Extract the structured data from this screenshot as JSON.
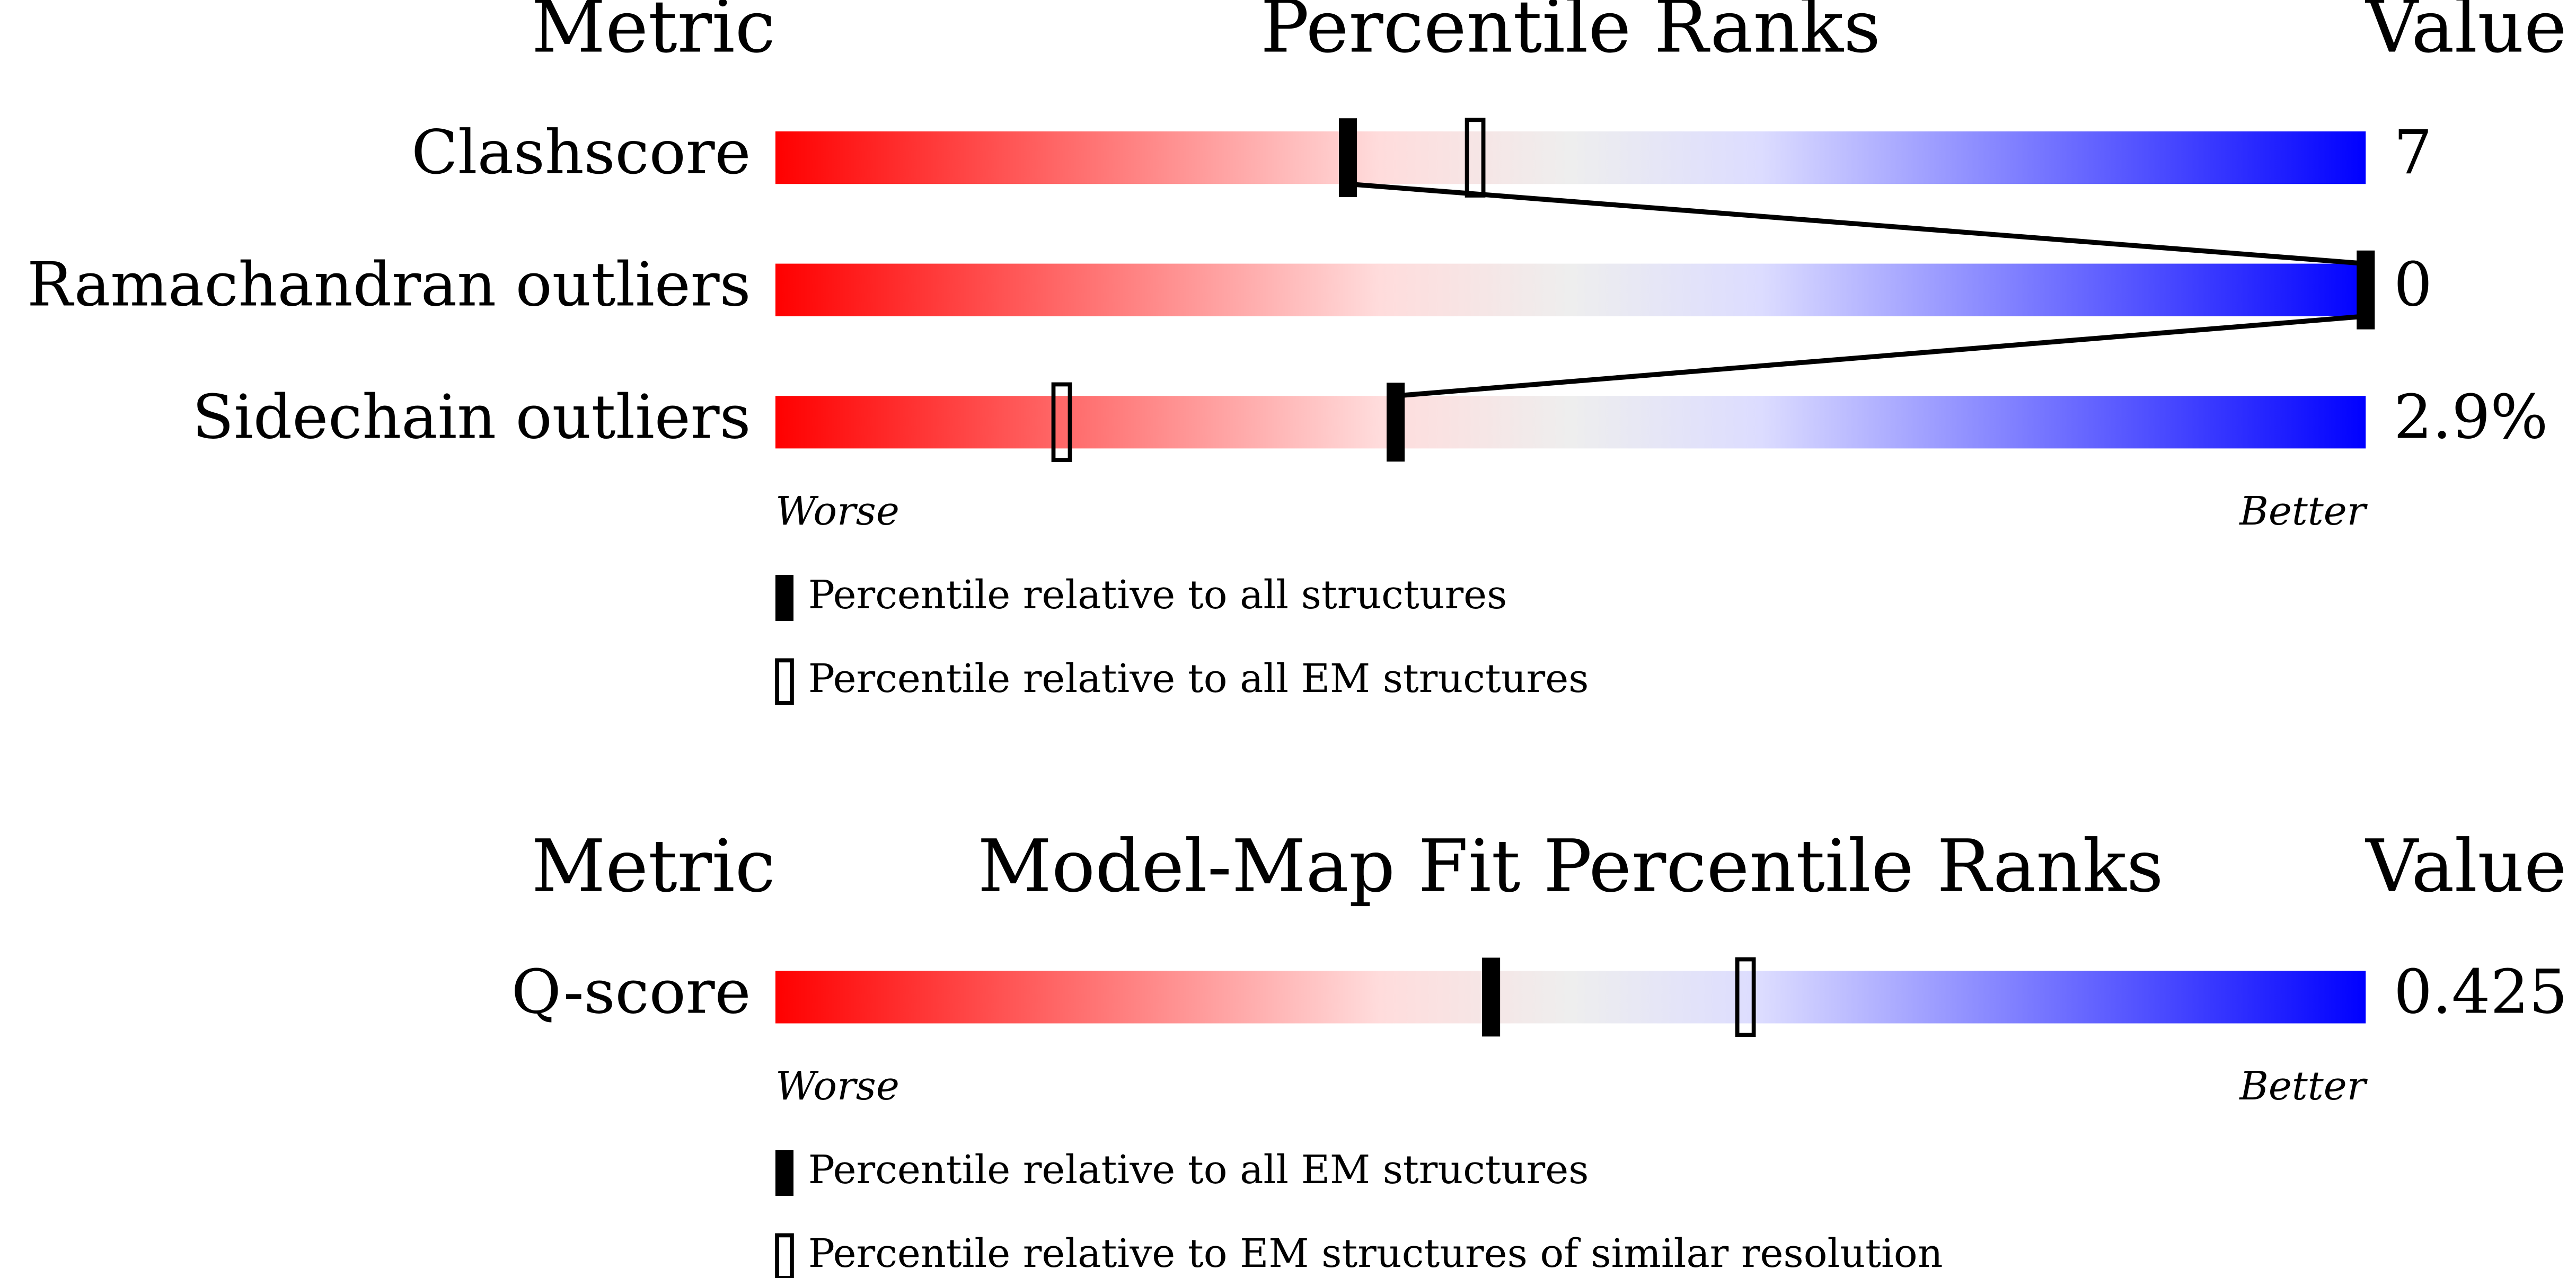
{
  "chart_data": [
    {
      "type": "percentile-slider",
      "headers": [
        "Metric",
        "Percentile Ranks",
        "Value"
      ],
      "categories": [
        "Clashscore",
        "Ramachandran outliers",
        "Sidechain outliers"
      ],
      "metric_values": [
        "7",
        "0",
        "2.9%"
      ],
      "xlim": [
        0,
        100
      ],
      "axis_labels": [
        "Worse",
        "Better"
      ],
      "connect": true,
      "series": [
        {
          "name": "Percentile relative to all structures",
          "marker": "filled",
          "color": "#000000",
          "values": [
            36,
            100,
            39
          ]
        },
        {
          "name": "Percentile relative to all EM structures",
          "marker": "outline",
          "color": "#000000",
          "values": [
            44,
            null,
            18
          ]
        }
      ]
    },
    {
      "type": "percentile-slider",
      "headers": [
        "Metric",
        "Model-Map Fit Percentile Ranks",
        "Value"
      ],
      "categories": [
        "Q-score"
      ],
      "metric_values": [
        "0.425"
      ],
      "xlim": [
        0,
        100
      ],
      "axis_labels": [
        "Worse",
        "Better"
      ],
      "connect": false,
      "series": [
        {
          "name": "Percentile relative to all EM structures",
          "marker": "filled",
          "color": "#000000",
          "values": [
            45
          ]
        },
        {
          "name": "Percentile relative to EM structures of similar resolution",
          "marker": "outline",
          "color": "#000000",
          "values": [
            61
          ]
        }
      ]
    }
  ]
}
